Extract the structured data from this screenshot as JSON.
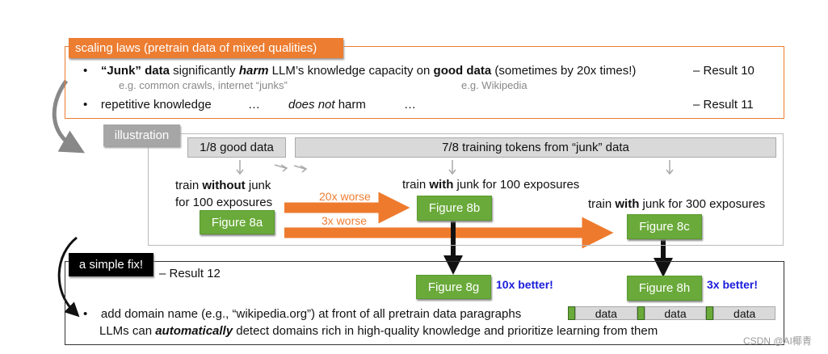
{
  "top": {
    "label": "scaling laws (pretrain data of mixed qualities)",
    "bullet1": {
      "q": "“Junk” data",
      "t1": " significantly ",
      "harm": "harm",
      "t2": " LLM’s knowledge capacity on ",
      "good": "good data",
      "t3": " (sometimes by 20x times!)",
      "result": "– Result 10"
    },
    "sub1": "e.g. common crawls, internet “junks”",
    "sub2": "e.g. Wikipedia",
    "bullet2": {
      "t1": "repetitive knowledge",
      "dots1": "…",
      "dn": "does not",
      "t2": " harm",
      "dots2": "…",
      "result": "– Result 11"
    }
  },
  "illustration": {
    "label": "illustration",
    "good_bar": "1/8 good data",
    "junk_bar": "7/8 training tokens from “junk” data",
    "a_text1": {
      "t1": "train ",
      "b": "without",
      "t2": " junk"
    },
    "a_text2": "for 100 exposures",
    "b_text": {
      "t1": "train ",
      "b": "with",
      "t2": " junk for 100 exposures"
    },
    "c_text": {
      "t1": "train ",
      "b": "with",
      "t2": " junk for 300 exposures"
    },
    "fig_a": "Figure 8a",
    "fig_b": "Figure 8b",
    "fig_c": "Figure 8c",
    "worse1": "20x worse",
    "worse2": "3x worse"
  },
  "fix": {
    "label": "a simple fix!",
    "result": "– Result 12",
    "fig_g": "Figure 8g",
    "better_g": "10x better!",
    "fig_h": "Figure 8h",
    "better_h": "3x better!",
    "bullet": "add domain name (e.g., “wikipedia.org”) at front of all pretrain data paragraphs",
    "line2": {
      "t1": "LLMs can ",
      "b": "automatically",
      "t2": " detect domains rich in high-quality knowledge and prioritize learning from them"
    },
    "data_blocks": [
      "data",
      "data",
      "data"
    ]
  },
  "watermark": "CSDN @AI椰青",
  "colors": {
    "orange": "#ed7d31",
    "green": "#6aaa3a",
    "blue": "#1a1adc"
  }
}
